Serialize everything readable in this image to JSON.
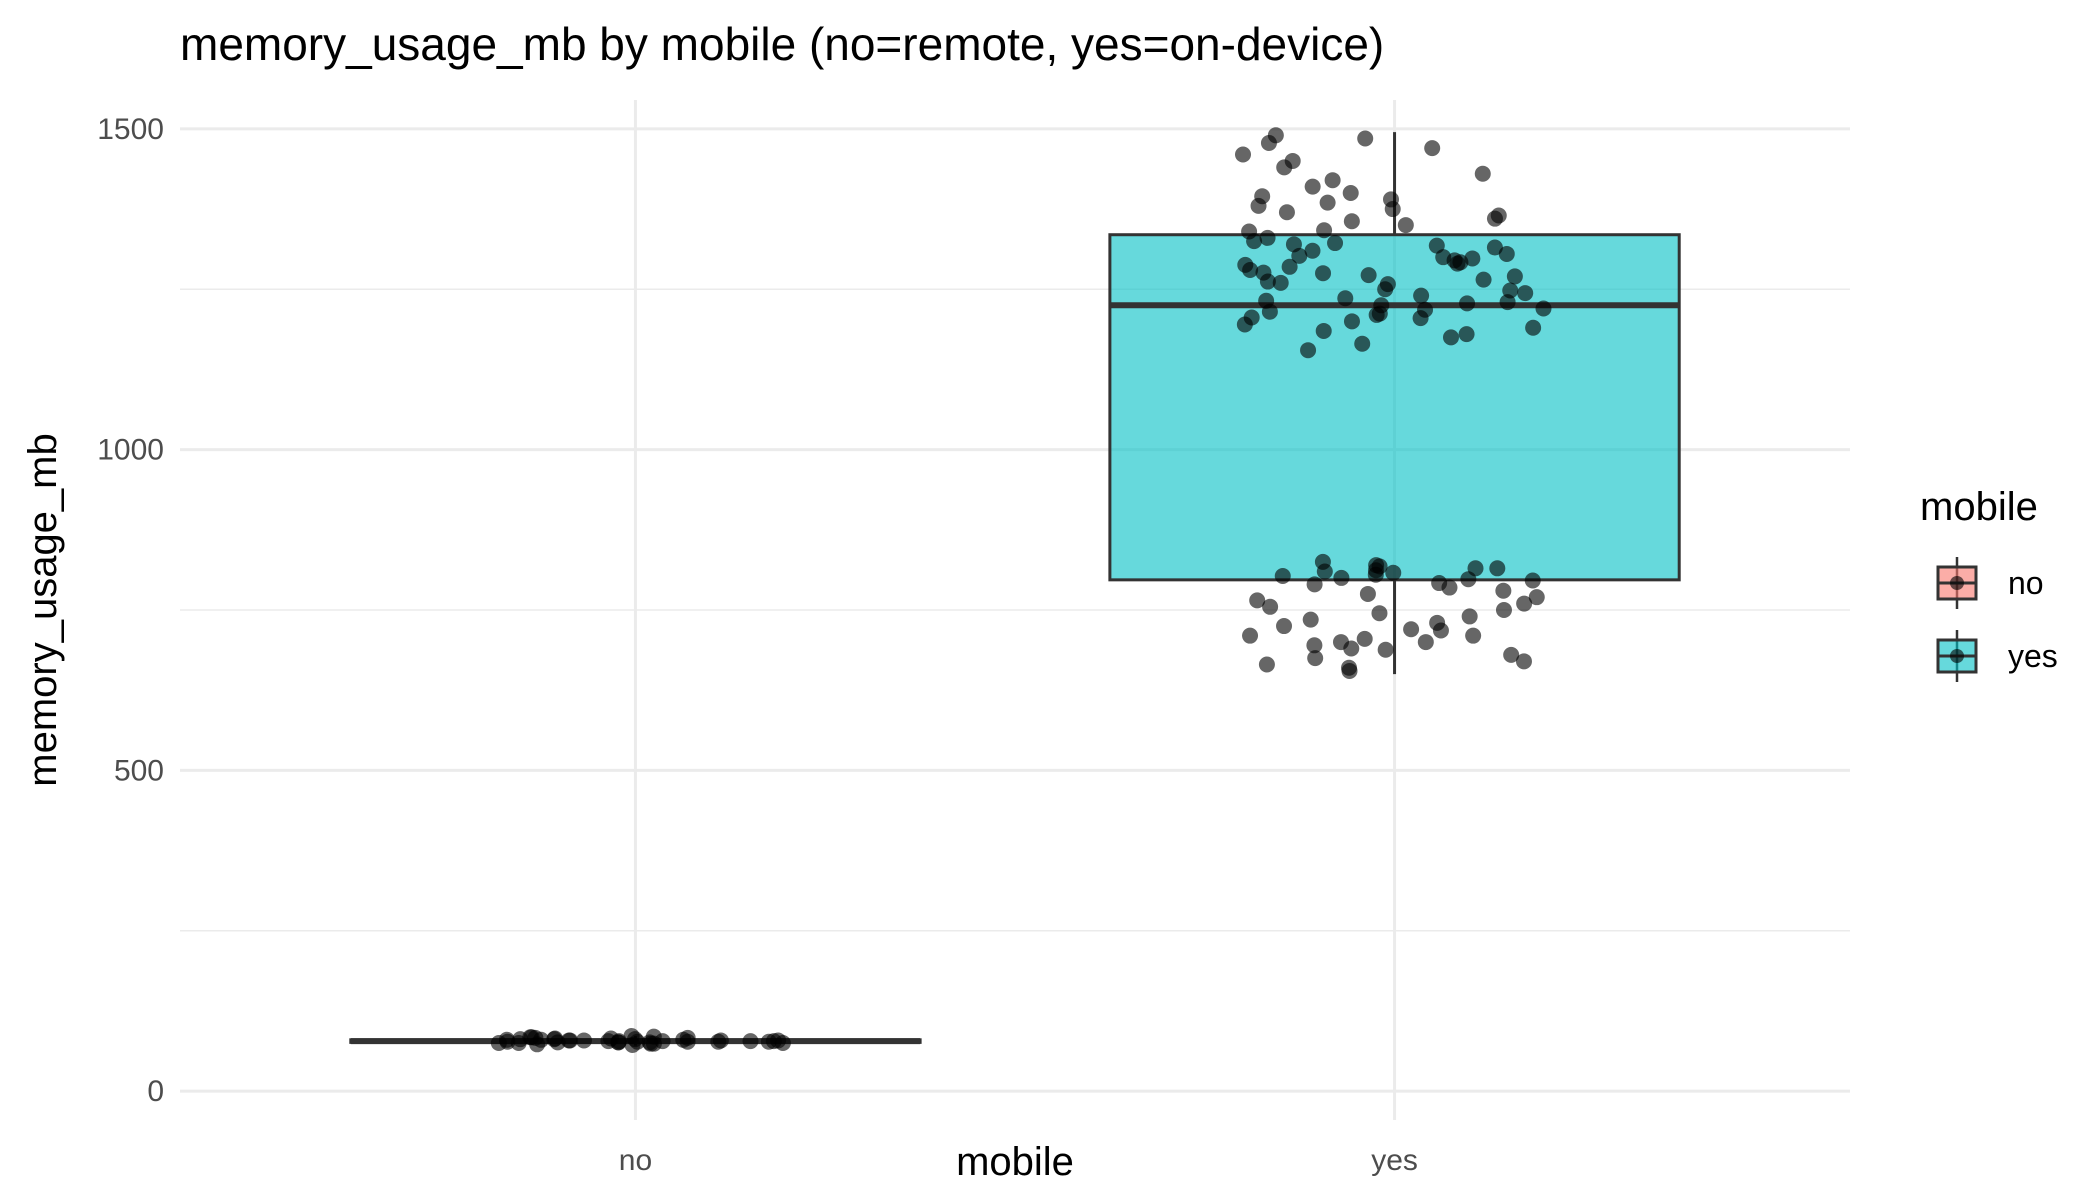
{
  "chart_data": {
    "type": "boxplot",
    "title": "memory_usage_mb by mobile (no=remote, yes=on-device)",
    "xlabel": "mobile",
    "ylabel": "memory_usage_mb",
    "categories": [
      "no",
      "yes"
    ],
    "ylim": [
      -45,
      1545
    ],
    "y_ticks": [
      0,
      500,
      1000,
      1500
    ],
    "y_tick_labels": [
      "0",
      "500",
      "1000",
      "1500"
    ],
    "grid": true,
    "legend": {
      "title": "mobile",
      "placement": "right",
      "entries": [
        {
          "label": "no",
          "color": "#F8766D"
        },
        {
          "label": "yes",
          "color": "#00BFC4"
        }
      ]
    },
    "boxes": [
      {
        "category": "no",
        "min": 71,
        "q1": 76,
        "median": 78,
        "q3": 80,
        "max": 86,
        "color": "#F8766D"
      },
      {
        "category": "yes",
        "min": 650,
        "q1": 797,
        "median": 1225,
        "q3": 1335,
        "max": 1495,
        "color": "#00BFC4"
      }
    ],
    "points": {
      "no": [
        72,
        74,
        75,
        76,
        76,
        77,
        77,
        78,
        78,
        78,
        79,
        79,
        80,
        80,
        81,
        82,
        83,
        84,
        85,
        86,
        73,
        75,
        77,
        79,
        81,
        76,
        78,
        80,
        82,
        74,
        77,
        79,
        83,
        75,
        78,
        81,
        76,
        79,
        84,
        77
      ],
      "yes": [
        655,
        660,
        665,
        670,
        675,
        680,
        688,
        695,
        700,
        705,
        710,
        718,
        725,
        735,
        745,
        755,
        765,
        775,
        785,
        792,
        796,
        800,
        805,
        808,
        812,
        815,
        818,
        820,
        825,
        790,
        798,
        803,
        810,
        815,
        780,
        770,
        760,
        750,
        740,
        730,
        720,
        710,
        700,
        690,
        1155,
        1165,
        1175,
        1180,
        1185,
        1190,
        1195,
        1200,
        1205,
        1210,
        1215,
        1220,
        1225,
        1230,
        1240,
        1250,
        1260,
        1265,
        1270,
        1275,
        1280,
        1285,
        1290,
        1295,
        1300,
        1305,
        1310,
        1315,
        1320,
        1325,
        1330,
        1340,
        1350,
        1360,
        1365,
        1370,
        1375,
        1380,
        1385,
        1390,
        1395,
        1400,
        1410,
        1420,
        1430,
        1440,
        1450,
        1460,
        1470,
        1478,
        1485,
        1490,
        1258,
        1272,
        1288,
        1298,
        1212,
        1228,
        1236,
        1244,
        1292,
        1318,
        1342,
        1356,
        1232,
        1248,
        1262,
        1276,
        1302,
        1322,
        1206,
        1218
      ]
    }
  }
}
